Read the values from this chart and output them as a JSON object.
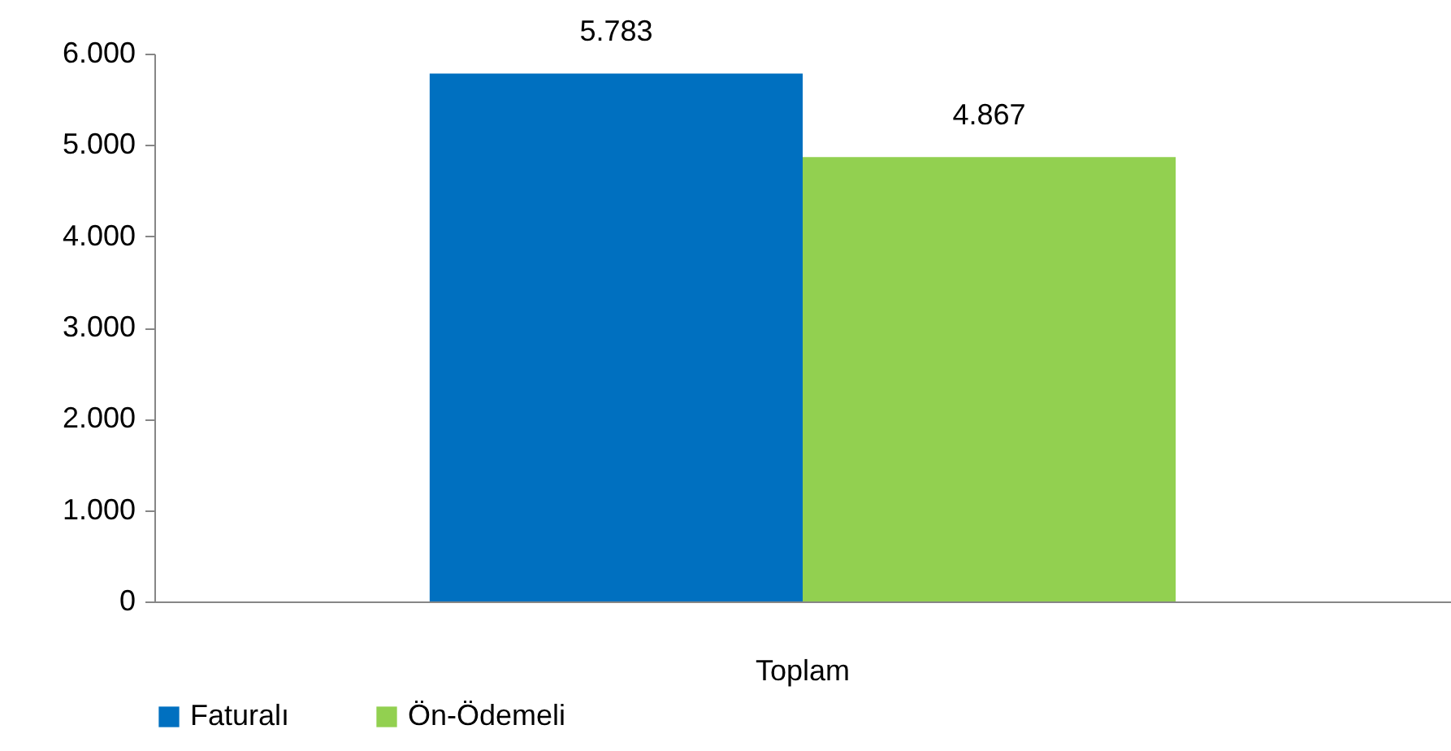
{
  "chart_data": {
    "type": "bar",
    "categories": [
      "Toplam"
    ],
    "series": [
      {
        "name": "Faturalı",
        "color": "#0070c0",
        "values": [
          5783
        ],
        "value_labels": [
          "5.783"
        ]
      },
      {
        "name": "Ön-Ödemeli",
        "color": "#92d050",
        "values": [
          4867
        ],
        "value_labels": [
          "4.867"
        ]
      }
    ],
    "ylim": [
      0,
      6000
    ],
    "yticks": [
      {
        "value": 0,
        "label": "0"
      },
      {
        "value": 1000,
        "label": "1.000"
      },
      {
        "value": 2000,
        "label": "2.000"
      },
      {
        "value": 3000,
        "label": "3.000"
      },
      {
        "value": 4000,
        "label": "4.000"
      },
      {
        "value": 5000,
        "label": "5.000"
      },
      {
        "value": 6000,
        "label": "6.000"
      }
    ],
    "grid": false,
    "legend": "bottom"
  }
}
